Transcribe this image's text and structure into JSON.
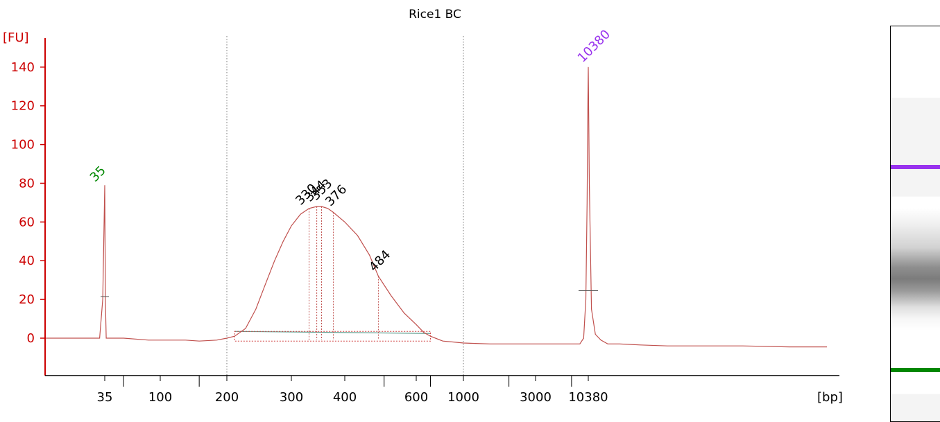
{
  "chart_data": {
    "type": "line",
    "title": "Rice1 BC",
    "ylabel": "[FU]",
    "xlabel": "[bp]",
    "ylim": [
      -20,
      155
    ],
    "yticks": [
      "0",
      "20",
      "40",
      "60",
      "80",
      "100",
      "120",
      "140"
    ],
    "yticks_values": [
      0,
      20,
      40,
      60,
      80,
      100,
      120,
      140
    ],
    "xtick_labels": [
      "35",
      "100",
      "200",
      "300",
      "400",
      "600",
      "1000",
      "3000",
      "10380"
    ],
    "xticks_major": [
      35,
      100,
      200,
      300,
      400,
      600,
      1000,
      3000,
      10380
    ],
    "xticks_minor": [
      50,
      150,
      500,
      700,
      2000,
      7000
    ],
    "region_lines": [
      200,
      1000
    ],
    "x_scale": "ladder (piecewise sizing)",
    "series": [
      {
        "color": "#c0504d",
        "x": [
          25,
          30,
          34,
          34.6,
          35,
          35.4,
          36,
          40,
          50,
          80,
          100,
          130,
          150,
          180,
          200,
          210,
          225,
          240,
          255,
          270,
          285,
          300,
          315,
          330,
          344,
          353,
          365,
          376,
          400,
          430,
          460,
          484,
          520,
          560,
          600,
          650,
          700,
          800,
          900,
          1000,
          1500,
          2000,
          3000,
          5000,
          7000,
          8500,
          9300,
          9800,
          10100,
          10300,
          10380,
          10480,
          10700,
          11100,
          11700,
          12500,
          14000,
          17000,
          22000,
          30000,
          45000,
          70000,
          100000
        ],
        "y": [
          0,
          0,
          0,
          20,
          79,
          20,
          0,
          0,
          0,
          -1,
          -1,
          -1,
          -1.5,
          -1,
          0,
          1,
          5,
          15,
          28,
          40,
          50,
          58,
          64,
          67,
          68,
          68,
          67,
          65,
          60,
          53,
          43,
          32,
          22,
          13,
          7,
          3,
          1,
          -1.5,
          -2,
          -2.5,
          -3,
          -3,
          -3,
          -3,
          -3,
          -3,
          0,
          20,
          70,
          125,
          140,
          80,
          15,
          2,
          -1,
          -3,
          -3,
          -3.5,
          -4,
          -4,
          -4,
          -4.5,
          -4.5
        ]
      }
    ],
    "peaks": [
      {
        "label": "35",
        "x": 35,
        "y": 79,
        "color": "#008800"
      },
      {
        "label": "10380",
        "x": 10380,
        "y": 140,
        "color": "#9933ee"
      },
      {
        "label": "330",
        "x": 330,
        "y": 67,
        "color": "#000000"
      },
      {
        "label": "344",
        "x": 344,
        "y": 68,
        "color": "#000000"
      },
      {
        "label": "353",
        "x": 353,
        "y": 68,
        "color": "#000000"
      },
      {
        "label": "376",
        "x": 376,
        "y": 65,
        "color": "#000000"
      },
      {
        "label": "484",
        "x": 484,
        "y": 32,
        "color": "#000000"
      }
    ],
    "smear_region": {
      "x": [
        210,
        700
      ],
      "y": 3.5
    },
    "marker_widths": [
      {
        "x": 35,
        "y": 21.5
      },
      {
        "x": 10380,
        "y": 24.5
      }
    ],
    "gel_bands": [
      {
        "name": "upper-marker",
        "color": "#9933ee"
      },
      {
        "name": "lower-marker",
        "color": "#008800"
      }
    ]
  }
}
